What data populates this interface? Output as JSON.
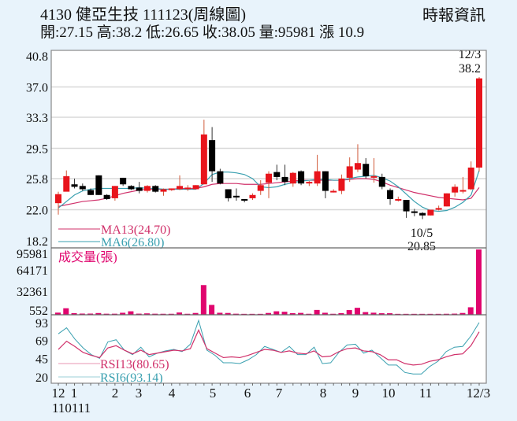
{
  "header": {
    "title": "4130  健亞生技 111123(周線圖)",
    "ohlc": "開:27.15 高:38.2 低:26.65 收:38.05 量:95981 漲 10.9",
    "source": "時報資訊"
  },
  "colors": {
    "background": "#e8f3fb",
    "up": "#e8141c",
    "down": "#000000",
    "ma13": "#d0306a",
    "ma6": "#3aa0b0",
    "volume": "#e0056e",
    "rsi13": "#d0306a",
    "rsi6": "#3aa0b0",
    "grid": "#d8d8d8"
  },
  "annotations": {
    "high_date": "12/3",
    "high_value": "38.2",
    "low_date": "10/5",
    "low_value": "20.85"
  },
  "legend": {
    "ma13": "MA13(24.70)",
    "ma6": "MA6(26.80)",
    "volume": "成交量(張)",
    "rsi13": "RSI13(80.65)",
    "rsi6": "RSI6(93.14)"
  },
  "chart_data": [
    {
      "type": "candlestick",
      "title": "4130 健亞生技 111123(周線圖)",
      "ylim": [
        18.2,
        40.8
      ],
      "yticks": [
        40.8,
        37.0,
        33.3,
        29.5,
        25.8,
        22.0,
        18.2
      ],
      "xticks": [
        "12",
        "1",
        "2",
        "3",
        "4",
        "5",
        "6",
        "7",
        "8",
        "9",
        "10",
        "11",
        "12/3"
      ],
      "xtick_sub": "110111",
      "series": {
        "ohlc": [
          [
            22.8,
            23.9,
            21.4,
            24.2
          ],
          [
            24.2,
            26.1,
            24.4,
            26.8
          ],
          [
            25.1,
            24.8,
            24.6,
            25.8
          ],
          [
            24.9,
            24.5,
            24.3,
            25.2
          ],
          [
            24.4,
            23.8,
            23.8,
            24.6
          ],
          [
            26.2,
            23.8,
            23.8,
            26.2
          ],
          [
            23.8,
            23.3,
            23.2,
            23.9
          ],
          [
            23.4,
            24.9,
            23.1,
            24.9
          ],
          [
            25.9,
            25.1,
            24.9,
            25.9
          ],
          [
            24.9,
            24.5,
            24.4,
            25.0
          ],
          [
            24.7,
            24.3,
            24.0,
            25.4
          ],
          [
            24.3,
            24.9,
            24.1,
            25.0
          ],
          [
            24.9,
            24.2,
            24.1,
            25.0
          ],
          [
            24.2,
            24.5,
            23.7,
            24.6
          ],
          [
            24.4,
            24.6,
            24.3,
            24.6
          ],
          [
            24.5,
            24.9,
            24.4,
            26.2
          ],
          [
            24.6,
            24.7,
            24.3,
            25.0
          ],
          [
            24.5,
            25.0,
            24.5,
            25.0
          ],
          [
            25.1,
            31.2,
            25.1,
            33.0
          ],
          [
            30.5,
            26.7,
            25.4,
            32.1
          ],
          [
            26.7,
            25.2,
            25.1,
            27.0
          ],
          [
            24.5,
            23.4,
            23.0,
            24.5
          ],
          [
            23.7,
            23.5,
            23.1,
            24.6
          ],
          [
            23.3,
            23.1,
            22.9,
            23.3
          ],
          [
            23.4,
            23.8,
            23.2,
            24.0
          ],
          [
            24.3,
            25.0,
            23.8,
            25.6
          ],
          [
            25.3,
            26.4,
            23.4,
            26.7
          ],
          [
            26.6,
            26.0,
            25.6,
            27.5
          ],
          [
            26.0,
            25.4,
            25.0,
            27.5
          ],
          [
            25.2,
            26.5,
            24.8,
            26.6
          ],
          [
            26.7,
            25.2,
            25.0,
            26.8
          ],
          [
            25.3,
            25.4,
            24.9,
            25.5
          ],
          [
            25.2,
            26.7,
            24.9,
            28.7
          ],
          [
            26.7,
            24.3,
            23.4,
            26.7
          ],
          [
            24.3,
            24.3,
            24.1,
            24.5
          ],
          [
            24.3,
            25.8,
            23.9,
            26.3
          ],
          [
            25.9,
            27.3,
            25.4,
            28.4
          ],
          [
            26.9,
            27.7,
            26.6,
            30.0
          ],
          [
            27.6,
            26.1,
            25.8,
            28.3
          ],
          [
            26.0,
            26.1,
            25.3,
            28.3
          ],
          [
            26.0,
            24.8,
            24.5,
            26.4
          ],
          [
            24.4,
            23.3,
            22.6,
            24.6
          ],
          [
            23.2,
            23.3,
            23.0,
            23.6
          ],
          [
            23.2,
            21.8,
            21.0,
            23.2
          ],
          [
            21.8,
            21.6,
            21.2,
            22.1
          ],
          [
            21.6,
            21.3,
            20.85,
            21.7
          ],
          [
            21.3,
            22.0,
            21.3,
            22.0
          ],
          [
            22.0,
            22.2,
            21.9,
            22.5
          ],
          [
            22.4,
            24.0,
            22.4,
            24.0
          ],
          [
            24.1,
            24.8,
            23.6,
            25.1
          ],
          [
            24.4,
            24.4,
            24.0,
            26.0
          ],
          [
            24.5,
            27.15,
            24.4,
            27.9
          ],
          [
            27.15,
            38.05,
            26.65,
            38.2
          ]
        ],
        "ma13": [
          22.4,
          22.6,
          22.8,
          23.0,
          23.1,
          23.2,
          23.4,
          23.7,
          24.0,
          24.2,
          24.4,
          24.5,
          24.5,
          24.5,
          24.5,
          24.6,
          24.6,
          24.6,
          24.8,
          25.1,
          25.2,
          25.2,
          25.2,
          25.1,
          25.1,
          25.1,
          25.2,
          25.3,
          25.4,
          25.5,
          25.6,
          25.6,
          25.6,
          25.6,
          25.6,
          25.6,
          25.7,
          25.8,
          25.8,
          25.7,
          25.4,
          25.0,
          24.7,
          24.4,
          24.1,
          23.9,
          23.7,
          23.5,
          23.4,
          23.3,
          23.2,
          23.4,
          24.7
        ],
        "ma6": [
          22.2,
          23.0,
          23.8,
          24.3,
          24.5,
          24.6,
          24.6,
          24.6,
          24.6,
          24.6,
          24.7,
          24.6,
          24.6,
          24.5,
          24.5,
          24.5,
          24.5,
          24.5,
          25.2,
          26.3,
          26.6,
          26.6,
          26.5,
          26.3,
          25.8,
          24.8,
          24.7,
          24.8,
          25.1,
          25.3,
          25.5,
          25.6,
          25.7,
          25.7,
          25.6,
          25.6,
          25.8,
          26.0,
          26.1,
          26.2,
          25.9,
          25.5,
          24.8,
          23.9,
          23.0,
          22.3,
          21.9,
          21.8,
          21.9,
          22.3,
          22.9,
          23.8,
          26.8
        ]
      }
    },
    {
      "type": "bar",
      "title": "成交量(張)",
      "yticks": [
        95981,
        64171,
        32361,
        552
      ],
      "values": [
        2000,
        8500,
        1200,
        600,
        600,
        1400,
        400,
        400,
        1800,
        4000,
        500,
        900,
        400,
        300,
        300,
        2200,
        300,
        1500,
        43000,
        13500,
        1800,
        1500,
        400,
        200,
        200,
        200,
        1500,
        4000,
        3300,
        1200,
        1600,
        300,
        6000,
        1800,
        300,
        1300,
        5800,
        9200,
        2800,
        1900,
        1100,
        1100,
        200,
        200,
        200,
        200,
        200,
        200,
        300,
        500,
        1500,
        10000,
        95981
      ]
    },
    {
      "type": "line",
      "title": "RSI",
      "yticks": [
        93,
        69,
        45,
        20
      ],
      "series": [
        {
          "name": "RSI13",
          "values": [
            57,
            68,
            61,
            53,
            49,
            46,
            59,
            62,
            56,
            51,
            56,
            50,
            52,
            54,
            56,
            55,
            58,
            83,
            58,
            52,
            46,
            47,
            46,
            49,
            53,
            57,
            56,
            53,
            55,
            52,
            51,
            55,
            47,
            48,
            54,
            58,
            59,
            55,
            54,
            50,
            43,
            43,
            38,
            36,
            37,
            41,
            43,
            47,
            50,
            51,
            62,
            80.65
          ]
        },
        {
          "name": "RSI6",
          "values": [
            78,
            86,
            71,
            59,
            50,
            45,
            67,
            70,
            56,
            50,
            60,
            47,
            52,
            55,
            57,
            54,
            64,
            96,
            56,
            49,
            39,
            39,
            38,
            43,
            50,
            61,
            57,
            53,
            61,
            50,
            50,
            60,
            38,
            39,
            53,
            63,
            64,
            52,
            56,
            46,
            36,
            36,
            26,
            24,
            24,
            34,
            41,
            54,
            60,
            61,
            75,
            93.14
          ]
        }
      ]
    }
  ]
}
